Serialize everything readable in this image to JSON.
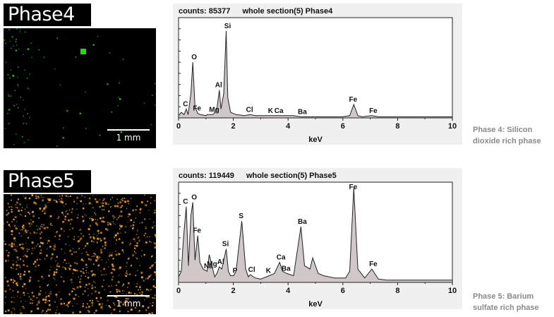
{
  "phases": [
    {
      "map_title": "Phase4",
      "scale_label": "1 mm",
      "map_color": "#33cc22",
      "counts_label": "counts: 85377",
      "section_label": "whole section(5) Phase4",
      "caption": [
        "Phase 4: Silicon",
        "dioxide rich phase"
      ]
    },
    {
      "map_title": "Phase5",
      "scale_label": "1 mm",
      "map_color": "#f0a030",
      "counts_label": "counts: 119449",
      "section_label": "whole section(5) Phase5",
      "caption": [
        "Phase 5: Barium",
        "sulfate rich phase"
      ]
    }
  ],
  "chart_data": [
    {
      "type": "line",
      "title": "counts: 85377 whole section(5) Phase4",
      "xlabel": "keV",
      "ylabel": "",
      "xlim": [
        0,
        10
      ],
      "x_ticks": [
        0,
        2,
        4,
        6,
        8,
        10
      ],
      "grid": false,
      "series": [
        {
          "x": [
            0,
            0.1,
            0.2,
            0.28,
            0.35,
            0.45,
            0.52,
            0.6,
            0.7,
            0.8,
            1.0,
            1.04,
            1.2,
            1.25,
            1.3,
            1.4,
            1.49,
            1.55,
            1.65,
            1.74,
            1.8,
            1.9,
            2.1,
            2.4,
            2.62,
            2.8,
            3.0,
            3.31,
            3.5,
            3.69,
            3.9,
            4.2,
            4.47,
            4.7,
            5.0,
            5.5,
            6.0,
            6.25,
            6.4,
            6.55,
            6.7,
            7.06,
            7.3,
            8.0,
            8.5,
            9.0,
            9.5,
            10.0
          ],
          "y": [
            2,
            5,
            3,
            8,
            3,
            22,
            50,
            10,
            4,
            3,
            2,
            3,
            3,
            3,
            4,
            8,
            25,
            8,
            22,
            78,
            18,
            5,
            3,
            2,
            3,
            2,
            2,
            2,
            2,
            2,
            2,
            2,
            1,
            1,
            1,
            1,
            1,
            2,
            12,
            2,
            1,
            2,
            1,
            1,
            1,
            1,
            1,
            1
          ]
        }
      ],
      "peak_labels": [
        {
          "label": "C",
          "x": 0.28
        },
        {
          "label": "O",
          "x": 0.52
        },
        {
          "label": "Fe",
          "x": 0.7
        },
        {
          "label": "Mg",
          "x": 1.25
        },
        {
          "label": "Al",
          "x": 1.49
        },
        {
          "label": "Si",
          "x": 1.74
        },
        {
          "label": "Cl",
          "x": 2.62
        },
        {
          "label": "K",
          "x": 3.31
        },
        {
          "label": "Ca",
          "x": 3.69
        },
        {
          "label": "Ba",
          "x": 4.47
        },
        {
          "label": "Fe",
          "x": 6.4
        },
        {
          "label": "Fe",
          "x": 7.06
        }
      ]
    },
    {
      "type": "line",
      "title": "counts: 119449 whole section(5) Phase5",
      "xlabel": "keV",
      "ylabel": "",
      "xlim": [
        0,
        10
      ],
      "x_ticks": [
        0,
        2,
        4,
        6,
        8,
        10
      ],
      "grid": false,
      "series": [
        {
          "x": [
            0,
            0.1,
            0.18,
            0.28,
            0.36,
            0.45,
            0.52,
            0.6,
            0.7,
            0.78,
            0.9,
            1.04,
            1.12,
            1.25,
            1.32,
            1.4,
            1.49,
            1.58,
            1.74,
            1.82,
            1.9,
            2.01,
            2.1,
            2.31,
            2.45,
            2.55,
            2.62,
            2.8,
            3.0,
            3.31,
            3.5,
            3.69,
            3.8,
            3.95,
            4.2,
            4.47,
            4.6,
            4.8,
            4.9,
            5.1,
            5.3,
            5.5,
            5.7,
            5.9,
            6.1,
            6.25,
            6.4,
            6.55,
            6.8,
            7.06,
            7.3,
            7.6,
            8.0,
            9.0,
            10.0
          ],
          "y": [
            5,
            10,
            40,
            68,
            15,
            60,
            72,
            20,
            42,
            18,
            12,
            10,
            25,
            12,
            5,
            8,
            14,
            12,
            30,
            10,
            6,
            6,
            10,
            55,
            12,
            5,
            7,
            4,
            3,
            6,
            8,
            18,
            10,
            8,
            6,
            50,
            15,
            12,
            22,
            8,
            6,
            5,
            4,
            4,
            4,
            10,
            85,
            12,
            4,
            12,
            3,
            2,
            2,
            2,
            2
          ]
        }
      ],
      "peak_labels": [
        {
          "label": "C",
          "x": 0.28
        },
        {
          "label": "O",
          "x": 0.52
        },
        {
          "label": "Fe",
          "x": 0.7
        },
        {
          "label": "Na",
          "x": 1.04
        },
        {
          "label": "Mg",
          "x": 1.25
        },
        {
          "label": "Al",
          "x": 1.49
        },
        {
          "label": "Si",
          "x": 1.74
        },
        {
          "label": "P",
          "x": 2.01
        },
        {
          "label": "S",
          "x": 2.31
        },
        {
          "label": "Cl",
          "x": 2.62
        },
        {
          "label": "K",
          "x": 3.31
        },
        {
          "label": "Ca",
          "x": 3.69
        },
        {
          "label": "Ba",
          "x": 3.95
        },
        {
          "label": "Ba",
          "x": 4.47
        },
        {
          "label": "Fe",
          "x": 6.4
        },
        {
          "label": "Fe",
          "x": 7.06
        }
      ]
    }
  ]
}
